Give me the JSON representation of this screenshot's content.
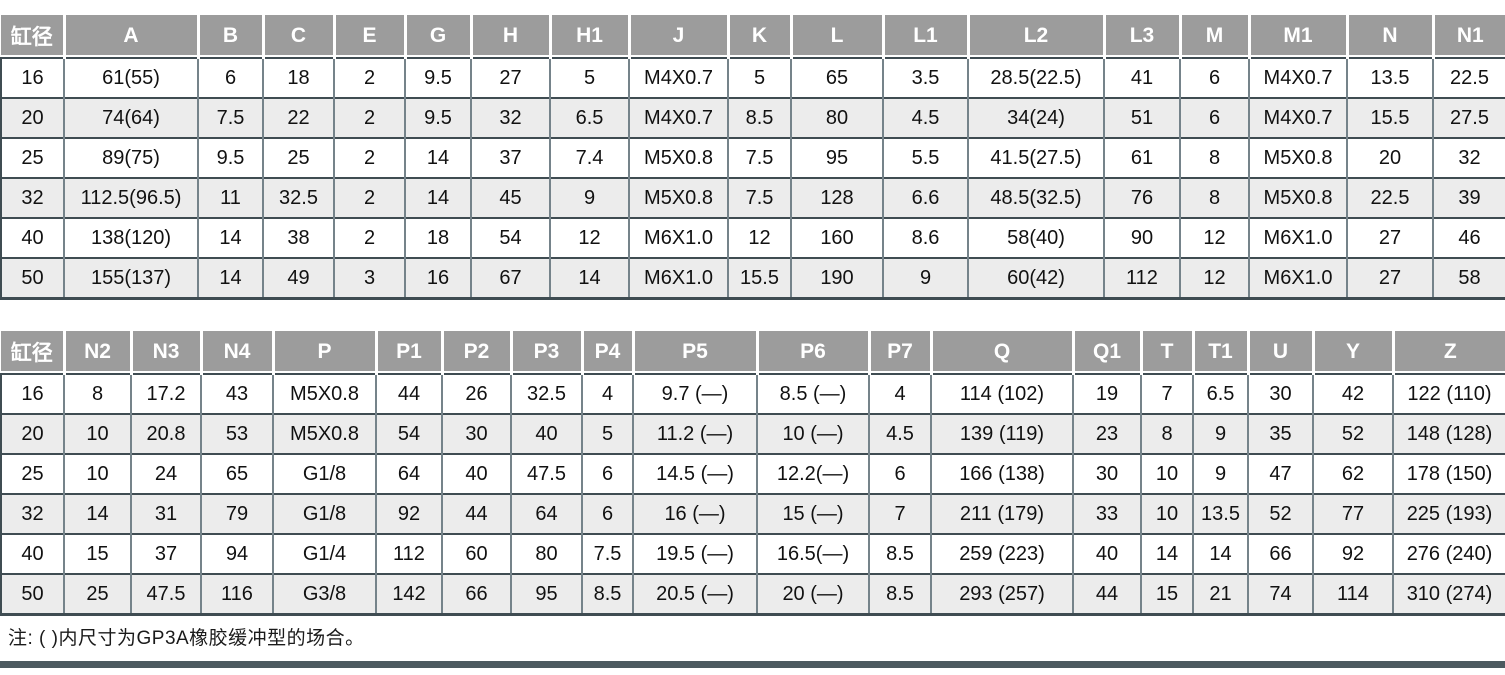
{
  "tables": [
    {
      "name": "dimensions-table-1",
      "headers": [
        "缸径",
        "A",
        "B",
        "C",
        "E",
        "G",
        "H",
        "H1",
        "J",
        "K",
        "L",
        "L1",
        "L2",
        "L3",
        "M",
        "M1",
        "N",
        "N1"
      ],
      "rows": [
        [
          "16",
          "61(55)",
          "6",
          "18",
          "2",
          "9.5",
          "27",
          "5",
          "M4X0.7",
          "5",
          "65",
          "3.5",
          "28.5(22.5)",
          "41",
          "6",
          "M4X0.7",
          "13.5",
          "22.5"
        ],
        [
          "20",
          "74(64)",
          "7.5",
          "22",
          "2",
          "9.5",
          "32",
          "6.5",
          "M4X0.7",
          "8.5",
          "80",
          "4.5",
          "34(24)",
          "51",
          "6",
          "M4X0.7",
          "15.5",
          "27.5"
        ],
        [
          "25",
          "89(75)",
          "9.5",
          "25",
          "2",
          "14",
          "37",
          "7.4",
          "M5X0.8",
          "7.5",
          "95",
          "5.5",
          "41.5(27.5)",
          "61",
          "8",
          "M5X0.8",
          "20",
          "32"
        ],
        [
          "32",
          "112.5(96.5)",
          "11",
          "32.5",
          "2",
          "14",
          "45",
          "9",
          "M5X0.8",
          "7.5",
          "128",
          "6.6",
          "48.5(32.5)",
          "76",
          "8",
          "M5X0.8",
          "22.5",
          "39"
        ],
        [
          "40",
          "138(120)",
          "14",
          "38",
          "2",
          "18",
          "54",
          "12",
          "M6X1.0",
          "12",
          "160",
          "8.6",
          "58(40)",
          "90",
          "12",
          "M6X1.0",
          "27",
          "46"
        ],
        [
          "50",
          "155(137)",
          "14",
          "49",
          "3",
          "16",
          "67",
          "14",
          "M6X1.0",
          "15.5",
          "190",
          "9",
          "60(42)",
          "112",
          "12",
          "M6X1.0",
          "27",
          "58"
        ]
      ]
    },
    {
      "name": "dimensions-table-2",
      "headers": [
        "缸径",
        "N2",
        "N3",
        "N4",
        "P",
        "P1",
        "P2",
        "P3",
        "P4",
        "P5",
        "P6",
        "P7",
        "Q",
        "Q1",
        "T",
        "T1",
        "U",
        "Y",
        "Z"
      ],
      "rows": [
        [
          "16",
          "8",
          "17.2",
          "43",
          "M5X0.8",
          "44",
          "26",
          "32.5",
          "4",
          "9.7 (—)",
          "8.5 (—)",
          "4",
          "114 (102)",
          "19",
          "7",
          "6.5",
          "30",
          "42",
          "122 (110)"
        ],
        [
          "20",
          "10",
          "20.8",
          "53",
          "M5X0.8",
          "54",
          "30",
          "40",
          "5",
          "11.2 (—)",
          "10 (—)",
          "4.5",
          "139 (119)",
          "23",
          "8",
          "9",
          "35",
          "52",
          "148 (128)"
        ],
        [
          "25",
          "10",
          "24",
          "65",
          "G1/8",
          "64",
          "40",
          "47.5",
          "6",
          "14.5 (—)",
          "12.2(—)",
          "6",
          "166 (138)",
          "30",
          "10",
          "9",
          "47",
          "62",
          "178 (150)"
        ],
        [
          "32",
          "14",
          "31",
          "79",
          "G1/8",
          "92",
          "44",
          "64",
          "6",
          "16 (—)",
          "15 (—)",
          "7",
          "211 (179)",
          "33",
          "10",
          "13.5",
          "52",
          "77",
          "225 (193)"
        ],
        [
          "40",
          "15",
          "37",
          "94",
          "G1/4",
          "112",
          "60",
          "80",
          "7.5",
          "19.5 (—)",
          "16.5(—)",
          "8.5",
          "259 (223)",
          "40",
          "14",
          "14",
          "66",
          "92",
          "276 (240)"
        ],
        [
          "50",
          "25",
          "47.5",
          "116",
          "G3/8",
          "142",
          "66",
          "95",
          "8.5",
          "20.5 (—)",
          "20 (—)",
          "8.5",
          "293 (257)",
          "44",
          "15",
          "21",
          "74",
          "114",
          "310 (274)"
        ]
      ]
    }
  ],
  "note": "注: ( )内尺寸为GP3A橡胶缓冲型的场合。",
  "colors": {
    "header_bg": "#9c9c9c",
    "header_text": "#ffffff",
    "row_alt_bg": "#ececec",
    "row_border": "#3f4c52",
    "cell_border": "#75838a",
    "bottom_bar": "#4d5a60",
    "note_text": "#1a1a1a"
  }
}
